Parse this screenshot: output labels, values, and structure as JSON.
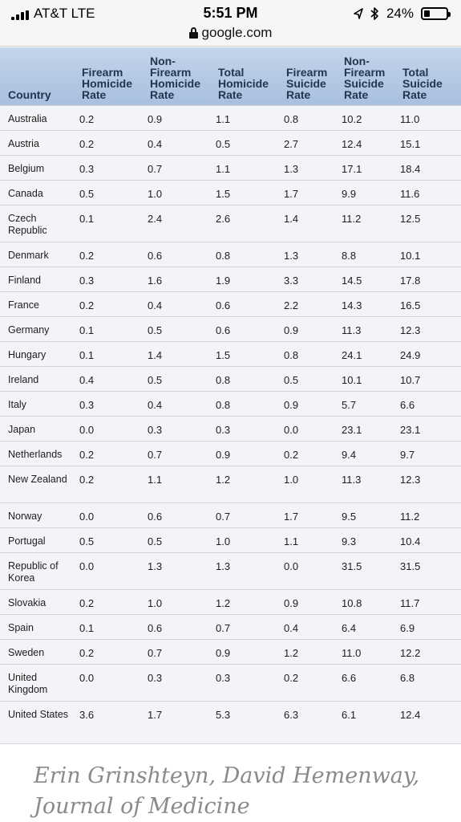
{
  "status_bar": {
    "carrier": "AT&T  LTE",
    "time": "5:51 PM",
    "battery": "24%",
    "icons": [
      "signal-icon",
      "location-arrow-icon",
      "bluetooth-icon",
      "battery-icon"
    ],
    "battery_level": 0.24
  },
  "url_bar": {
    "url": "google.com",
    "icon": "lock-icon"
  },
  "table": {
    "headers": {
      "country": "Country",
      "firearm_homicide": "Firearm Homicide Rate",
      "nonfirearm_homicide": "Non-Firearm Homicide Rate",
      "total_homicide": "Total Homicide Rate",
      "firearm_suicide": "Firearm Suicide Rate",
      "nonfirearm_suicide": "Non-Firearm Suicide Rate",
      "total_suicide": "Total Suicide Rate"
    },
    "rows": [
      {
        "country": "Australia",
        "values": [
          "0.2",
          "0.9",
          "1.1",
          "0.8",
          "10.2",
          "11.0"
        ]
      },
      {
        "country": "Austria",
        "values": [
          "0.2",
          "0.4",
          "0.5",
          "2.7",
          "12.4",
          "15.1"
        ]
      },
      {
        "country": "Belgium",
        "values": [
          "0.3",
          "0.7",
          "1.1",
          "1.3",
          "17.1",
          "18.4"
        ]
      },
      {
        "country": "Canada",
        "values": [
          "0.5",
          "1.0",
          "1.5",
          "1.7",
          "9.9",
          "11.6"
        ]
      },
      {
        "country": "Czech Republic",
        "values": [
          "0.1",
          "2.4",
          "2.6",
          "1.4",
          "11.2",
          "12.5"
        ]
      },
      {
        "country": "Denmark",
        "values": [
          "0.2",
          "0.6",
          "0.8",
          "1.3",
          "8.8",
          "10.1"
        ]
      },
      {
        "country": "Finland",
        "values": [
          "0.3",
          "1.6",
          "1.9",
          "3.3",
          "14.5",
          "17.8"
        ]
      },
      {
        "country": "France",
        "values": [
          "0.2",
          "0.4",
          "0.6",
          "2.2",
          "14.3",
          "16.5"
        ]
      },
      {
        "country": "Germany",
        "values": [
          "0.1",
          "0.5",
          "0.6",
          "0.9",
          "11.3",
          "12.3"
        ]
      },
      {
        "country": "Hungary",
        "values": [
          "0.1",
          "1.4",
          "1.5",
          "0.8",
          "24.1",
          "24.9"
        ]
      },
      {
        "country": "Ireland",
        "values": [
          "0.4",
          "0.5",
          "0.8",
          "0.5",
          "10.1",
          "10.7"
        ]
      },
      {
        "country": "Italy",
        "values": [
          "0.3",
          "0.4",
          "0.8",
          "0.9",
          "5.7",
          "6.6"
        ]
      },
      {
        "country": "Japan",
        "values": [
          "0.0",
          "0.3",
          "0.3",
          "0.0",
          "23.1",
          "23.1"
        ]
      },
      {
        "country": "Netherlands",
        "values": [
          "0.2",
          "0.7",
          "0.9",
          "0.2",
          "9.4",
          "9.7"
        ]
      },
      {
        "country": "New Zealand",
        "values": [
          "0.2",
          "1.1",
          "1.2",
          "1.0",
          "11.3",
          "12.3"
        ]
      },
      {
        "country": "Norway",
        "values": [
          "0.0",
          "0.6",
          "0.7",
          "1.7",
          "9.5",
          "11.2"
        ]
      },
      {
        "country": "Portugal",
        "values": [
          "0.5",
          "0.5",
          "1.0",
          "1.1",
          "9.3",
          "10.4"
        ]
      },
      {
        "country": "Republic of Korea",
        "values": [
          "0.0",
          "1.3",
          "1.3",
          "0.0",
          "31.5",
          "31.5"
        ]
      },
      {
        "country": "Slovakia",
        "values": [
          "0.2",
          "1.0",
          "1.2",
          "0.9",
          "10.8",
          "11.7"
        ]
      },
      {
        "country": "Spain",
        "values": [
          "0.1",
          "0.6",
          "0.7",
          "0.4",
          "6.4",
          "6.9"
        ]
      },
      {
        "country": "Sweden",
        "values": [
          "0.2",
          "0.7",
          "0.9",
          "1.2",
          "11.0",
          "12.2"
        ]
      },
      {
        "country": "United Kingdom",
        "values": [
          "0.0",
          "0.3",
          "0.3",
          "0.2",
          "6.6",
          "6.8"
        ]
      },
      {
        "country": "United States",
        "values": [
          "3.6",
          "1.7",
          "5.3",
          "6.3",
          "6.1",
          "12.4"
        ]
      }
    ]
  },
  "caption": {
    "line1": "Erin Grinshteyn, David Hemenway,",
    "line2": "Journal of Medicine"
  }
}
